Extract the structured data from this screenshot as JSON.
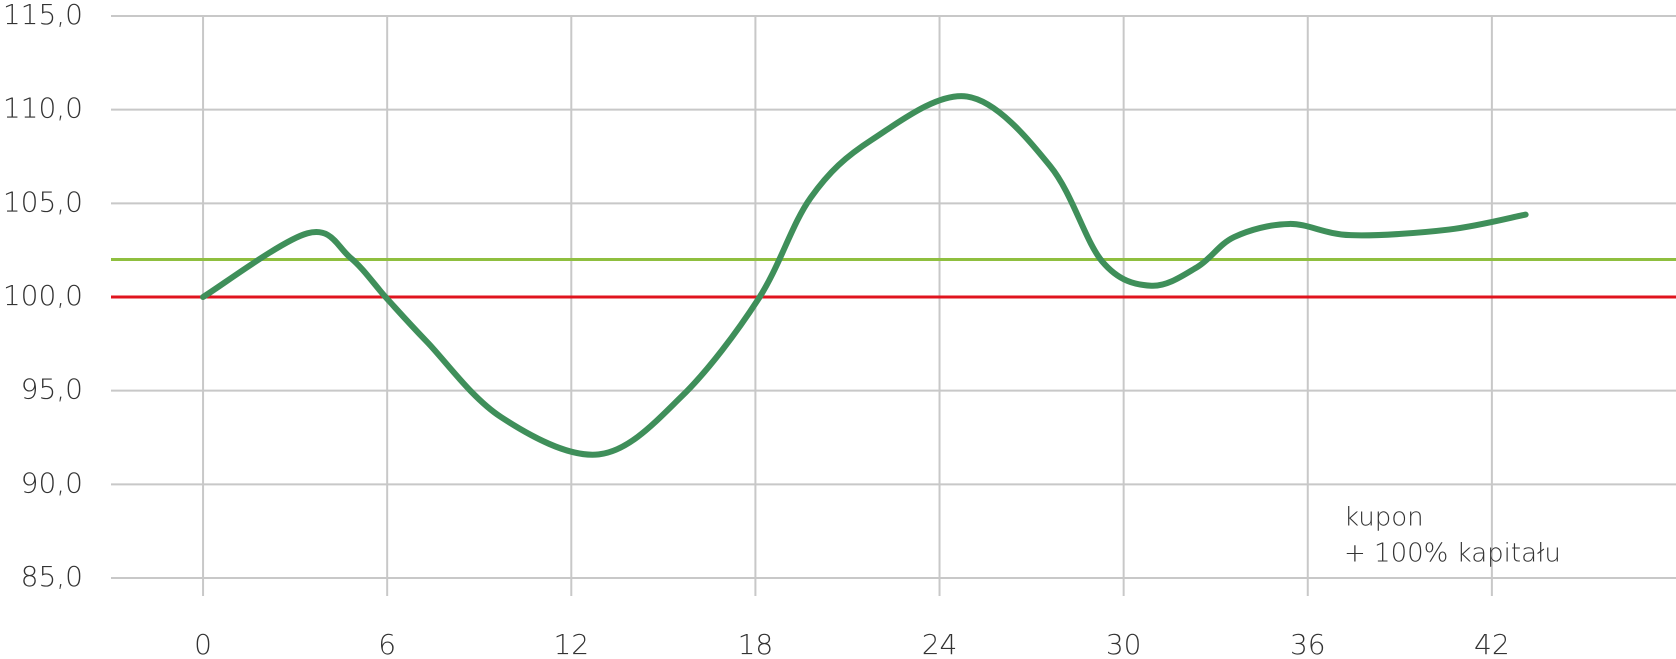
{
  "chart_data": {
    "type": "line",
    "x": [
      0,
      3.4,
      4.8,
      6,
      7.3,
      9.7,
      12.9,
      15.6,
      18.1,
      19.8,
      21.8,
      24.9,
      27.6,
      29.3,
      30.9,
      32.4,
      33.6,
      35.4,
      37.4,
      40.6,
      43.1
    ],
    "series": [
      {
        "color": "#3f8f5a",
        "values": [
          100,
          103.4,
          102.1,
          99.9,
          97.6,
          93.6,
          91.6,
          94.7,
          99.9,
          105.3,
          108.4,
          110.7,
          107.0,
          101.9,
          100.6,
          101.6,
          103.2,
          103.9,
          103.3,
          103.6,
          104.4
        ]
      }
    ],
    "xlim": [
      -3,
      48
    ],
    "xticks": [
      0,
      6,
      12,
      18,
      24,
      30,
      36,
      42
    ],
    "ylim": [
      85,
      115
    ],
    "yticks": [
      {
        "value": 85,
        "label": "85,0"
      },
      {
        "value": 90,
        "label": "90,0"
      },
      {
        "value": 95,
        "label": "95,0"
      },
      {
        "value": 100,
        "label": "100,0"
      },
      {
        "value": 105,
        "label": "105,0"
      },
      {
        "value": 110,
        "label": "110,0"
      },
      {
        "value": 115,
        "label": "115,0"
      }
    ],
    "grid": true,
    "reference_lines": [
      {
        "value": 102,
        "color": "#8fbf3f"
      },
      {
        "value": 100,
        "color": "#e0141e"
      }
    ],
    "annotations": [
      "kupon",
      "+ 100% kapitału"
    ]
  }
}
